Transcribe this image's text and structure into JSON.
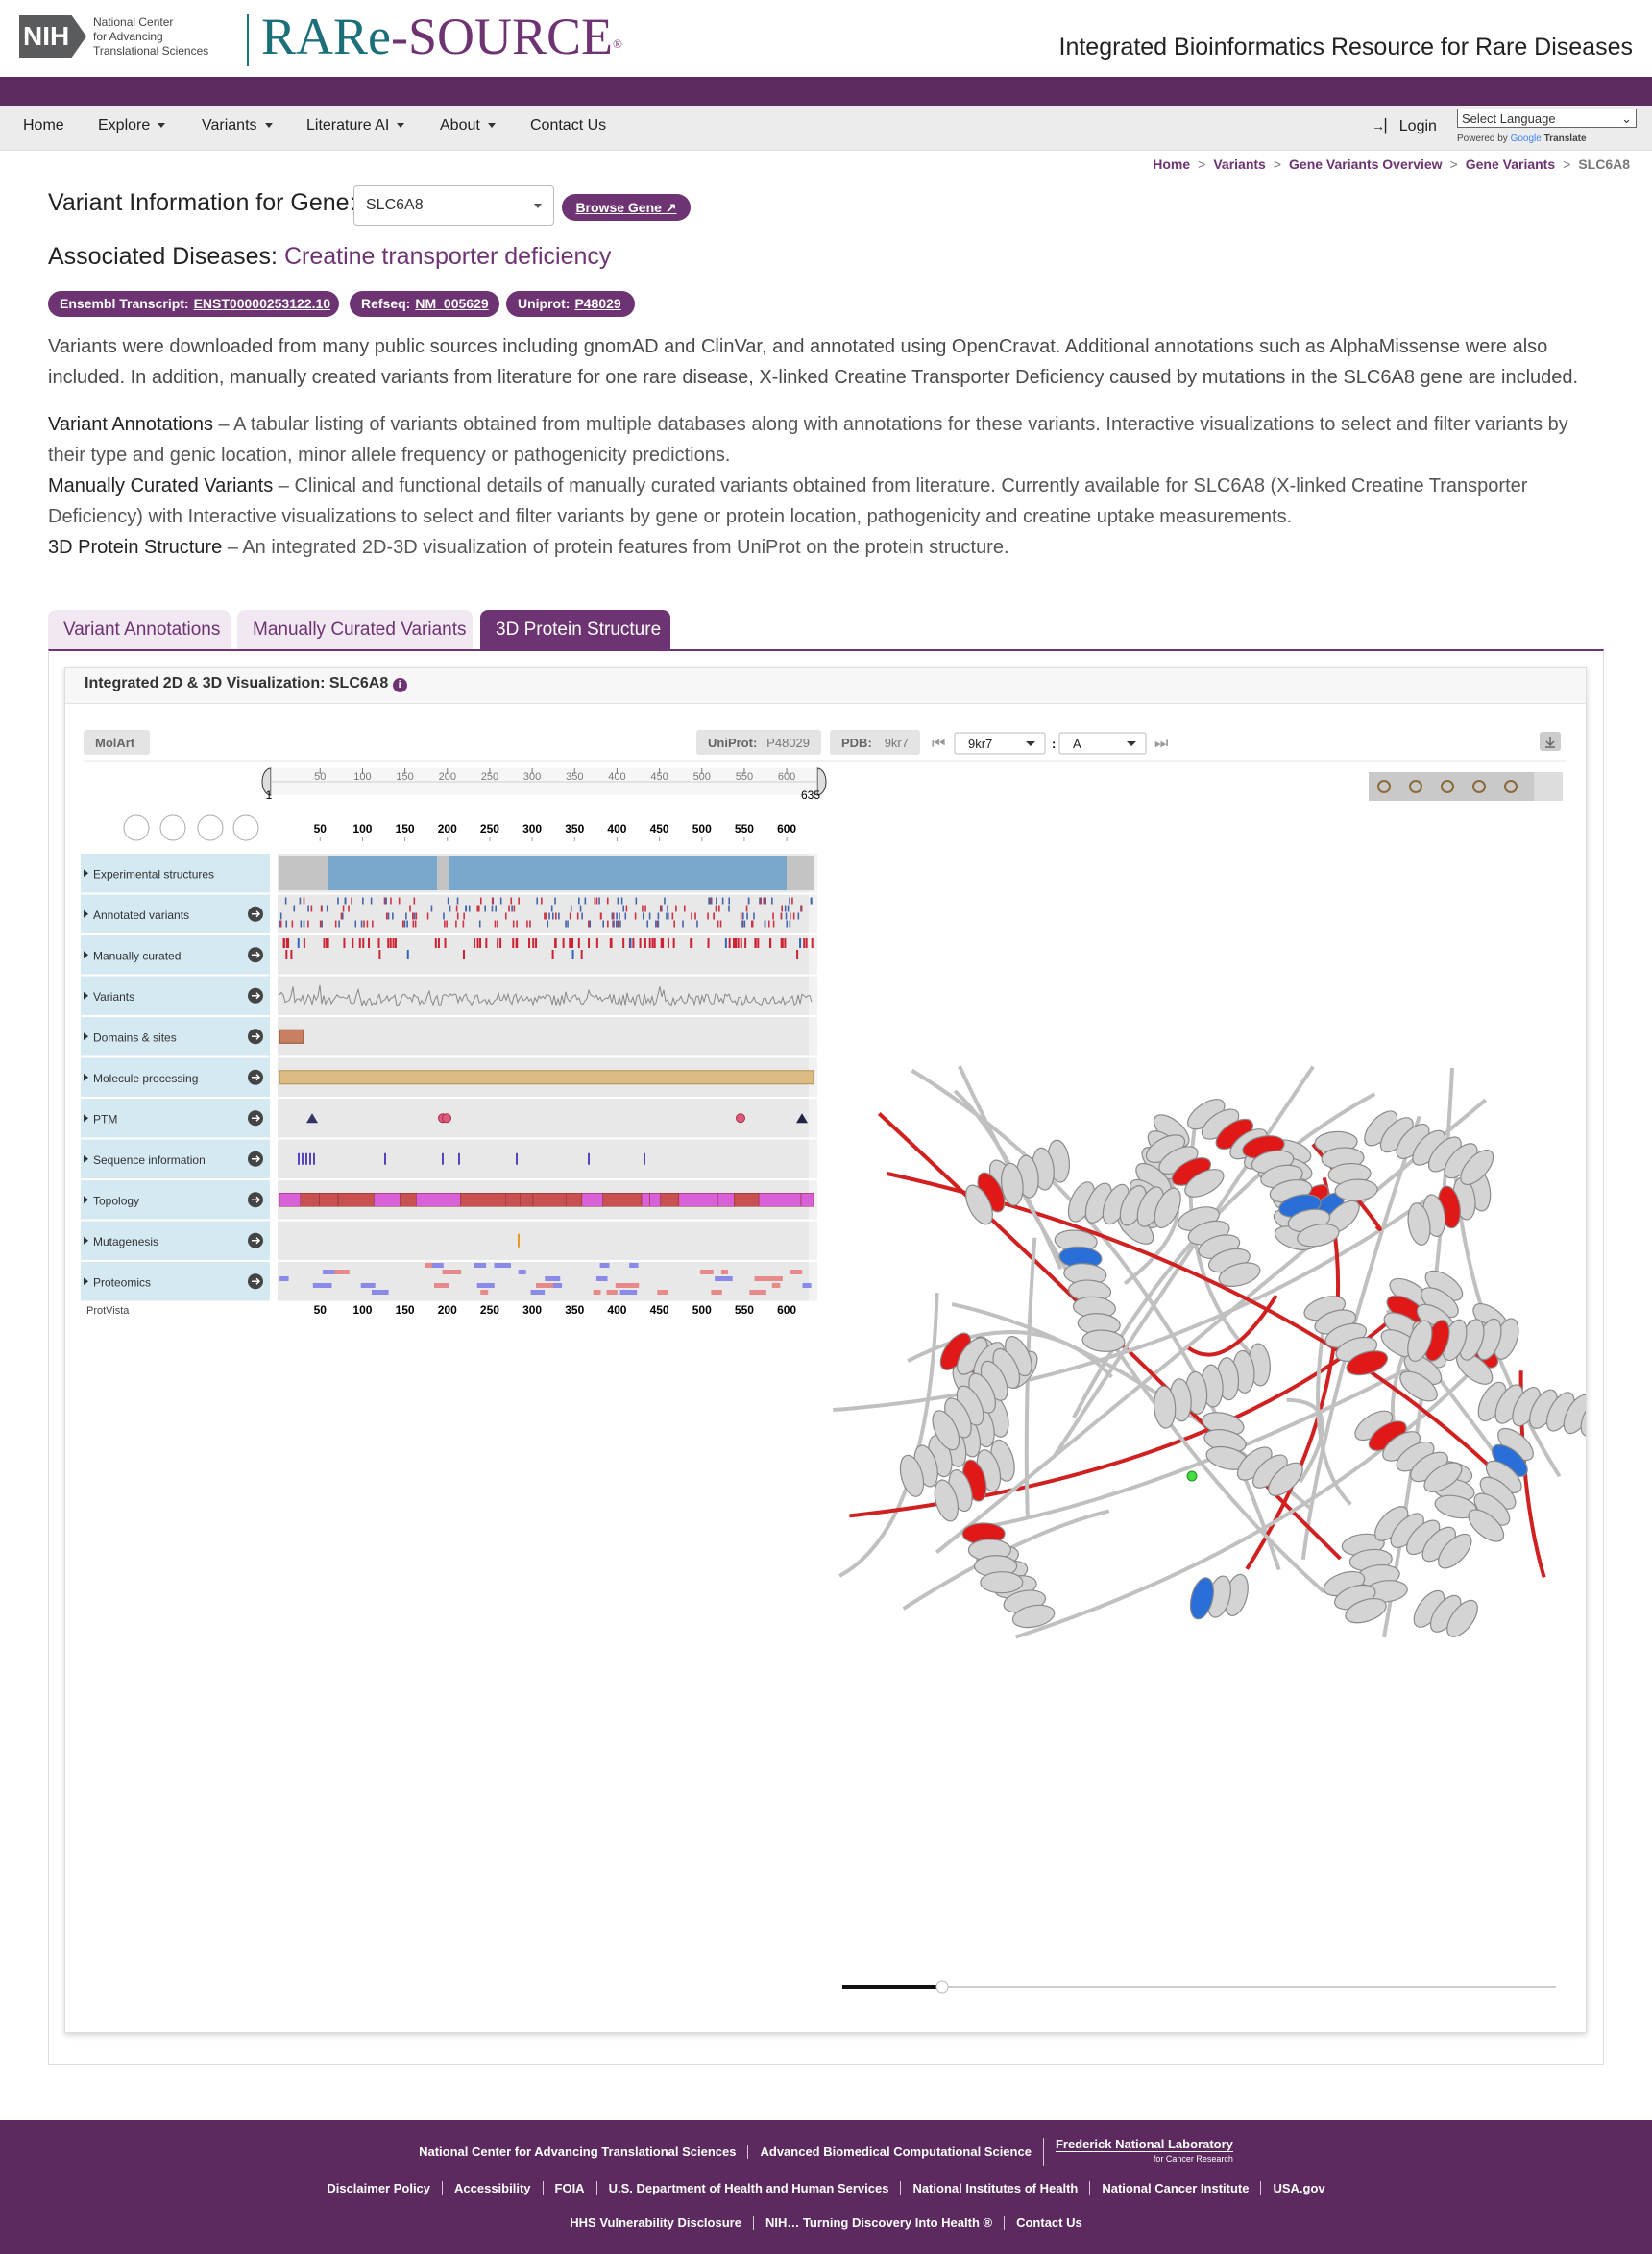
{
  "header": {
    "logo": "NIH",
    "org": [
      "National Center",
      "for Advancing",
      "Translational Sciences"
    ],
    "brand_parts": [
      "RARe",
      "-SOURCE"
    ],
    "registered": "®",
    "tagline": "Integrated Bioinformatics Resource for Rare Diseases"
  },
  "nav": {
    "items": [
      "Home",
      "Explore",
      "Variants",
      "Literature AI",
      "About",
      "Contact Us"
    ],
    "dropdown": [
      false,
      true,
      true,
      true,
      true,
      false
    ],
    "login": "Login",
    "language": "Select Language",
    "powered_by": "Powered by",
    "google": "Google",
    "translate": "Translate"
  },
  "breadcrumb": {
    "items": [
      "Home",
      "Variants",
      "Gene Variants Overview",
      "Gene Variants",
      "SLC6A8"
    ],
    "separator": ">"
  },
  "gene": {
    "label": "Variant Information for Gene:",
    "selected": "SLC6A8",
    "button": "Browse Gene"
  },
  "diseases": {
    "label": "Associated Diseases:",
    "value": "Creatine transporter deficiency"
  },
  "badges": [
    {
      "label": "Ensembl Transcript:",
      "value": "ENST00000253122.10"
    },
    {
      "label": "Refseq:",
      "value": "NM_005629"
    },
    {
      "label": "Uniprot:",
      "value": "P48029"
    }
  ],
  "intro": "Variants were downloaded from many public sources including gnomAD and ClinVar, and annotated using OpenCravat. Additional annotations such as AlphaMissense were also included. In addition, manually created variants from literature for one rare disease, X-linked Creatine Transporter Deficiency caused by mutations in the SLC6A8 gene are included.",
  "descriptions": [
    {
      "title": "Variant Annotations",
      "text": "– A tabular listing of variants obtained from multiple databases along with annotations for these variants. Interactive visualizations to select and filter variants by their type and genic location, minor allele frequency or pathogenicity predictions."
    },
    {
      "title": "Manually Curated Variants",
      "text": "– Clinical and functional details of manually curated variants obtained from literature. Currently available for SLC6A8 (X-linked Creatine Transporter Deficiency) with Interactive visualizations to select and filter variants by gene or protein location, pathogenicity and creatine uptake measurements."
    },
    {
      "title": "3D Protein Structure",
      "text": "– An integrated 2D-3D visualization of protein features from UniProt on the protein structure."
    }
  ],
  "tabs": {
    "items": [
      "Variant Annotations",
      "Manually Curated Variants",
      "3D Protein Structure"
    ],
    "active": 2
  },
  "viz": {
    "title": "Integrated 2D & 3D Visualization: SLC6A8",
    "molart": "MolArt",
    "uniprot_label": "UniProt:",
    "uniprot": "P48029",
    "pdb_label": "PDB:",
    "pdb": "9kr7",
    "pdb_select": "9kr7",
    "separator": ":",
    "chain": "A",
    "range": [
      1,
      635
    ],
    "ticks": [
      50,
      100,
      150,
      200,
      250,
      300,
      350,
      400,
      450,
      500,
      550,
      600
    ],
    "tracks": [
      "Experimental structures",
      "Annotated variants",
      "Manually curated",
      "Variants",
      "Domains & sites",
      "Molecule processing",
      "PTM",
      "Sequence information",
      "Topology",
      "Mutagenesis",
      "Proteomics"
    ],
    "protvista": "ProtVista"
  },
  "footer": {
    "rows": [
      [
        "National Center for Advancing Translational Sciences",
        "Advanced Biomedical Computational Science"
      ],
      [
        "Disclaimer Policy",
        "Accessibility",
        "FOIA",
        "U.S. Department of Health and Human Services",
        "National Institutes of Health",
        "National Cancer Institute",
        "USA.gov"
      ],
      [
        "HHS Vulnerability Disclosure",
        "NIH… Turning Discovery Into Health ®",
        "Contact Us"
      ]
    ],
    "fnl": [
      "Frederick National Laboratory",
      "for Cancer Research"
    ]
  }
}
